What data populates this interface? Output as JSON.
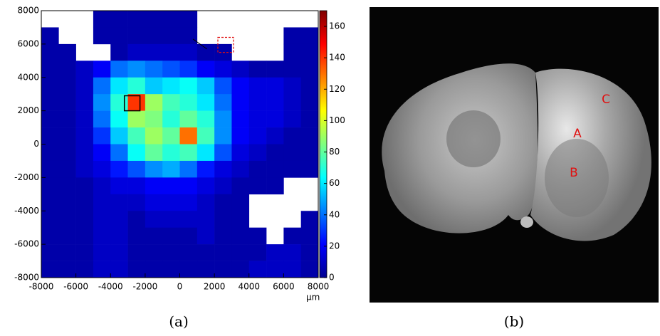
{
  "chart_data": [
    {
      "type": "heatmap",
      "xlabel": "µm",
      "caption": "(a)",
      "xlim": [
        -8000,
        8000
      ],
      "ylim": [
        -8000,
        8000
      ],
      "xticks": [
        -8000,
        -6000,
        -4000,
        -2000,
        0,
        2000,
        4000,
        6000,
        8000
      ],
      "yticks": [
        -8000,
        -6000,
        -4000,
        -2000,
        0,
        2000,
        4000,
        6000,
        8000
      ],
      "clim": [
        0,
        170
      ],
      "cticks": [
        0,
        20,
        40,
        60,
        80,
        100,
        120,
        140,
        160
      ],
      "colormap": [
        "#00008f",
        "#0000ff",
        "#007fff",
        "#00ffff",
        "#7fff7f",
        "#ffff00",
        "#ff7f00",
        "#ff0000",
        "#7f0000"
      ],
      "z": [
        [
          null,
          null,
          null,
          5,
          5,
          5,
          5,
          5,
          5,
          null,
          null,
          null,
          null,
          null,
          null,
          null
        ],
        [
          5,
          null,
          null,
          5,
          5,
          5,
          5,
          5,
          5,
          null,
          null,
          null,
          null,
          null,
          5,
          5
        ],
        [
          5,
          5,
          null,
          null,
          5,
          10,
          10,
          10,
          10,
          5,
          5,
          null,
          null,
          null,
          5,
          5
        ],
        [
          5,
          5,
          10,
          20,
          40,
          45,
          40,
          35,
          30,
          20,
          15,
          10,
          5,
          5,
          5,
          5
        ],
        [
          5,
          5,
          10,
          40,
          60,
          70,
          55,
          60,
          65,
          55,
          35,
          20,
          15,
          15,
          10,
          5
        ],
        [
          5,
          5,
          10,
          45,
          70,
          140,
          90,
          75,
          70,
          60,
          40,
          20,
          15,
          15,
          10,
          5
        ],
        [
          5,
          5,
          10,
          40,
          65,
          90,
          85,
          70,
          80,
          70,
          45,
          20,
          15,
          15,
          10,
          5
        ],
        [
          5,
          5,
          10,
          30,
          55,
          75,
          90,
          80,
          130,
          75,
          45,
          20,
          15,
          10,
          5,
          5
        ],
        [
          5,
          5,
          10,
          20,
          40,
          65,
          80,
          70,
          75,
          60,
          35,
          15,
          10,
          5,
          5,
          5
        ],
        [
          5,
          5,
          10,
          15,
          25,
          35,
          45,
          50,
          40,
          25,
          15,
          10,
          5,
          5,
          5,
          5
        ],
        [
          5,
          5,
          5,
          10,
          15,
          15,
          20,
          20,
          20,
          15,
          10,
          5,
          5,
          5,
          null,
          null
        ],
        [
          5,
          5,
          5,
          10,
          10,
          10,
          15,
          15,
          15,
          10,
          5,
          5,
          null,
          null,
          null,
          null
        ],
        [
          5,
          5,
          5,
          10,
          10,
          5,
          10,
          10,
          10,
          10,
          5,
          5,
          null,
          null,
          null,
          5
        ],
        [
          5,
          5,
          5,
          10,
          10,
          5,
          5,
          5,
          5,
          10,
          5,
          5,
          5,
          null,
          5,
          5
        ],
        [
          5,
          5,
          5,
          10,
          10,
          5,
          5,
          5,
          5,
          5,
          5,
          5,
          5,
          10,
          10,
          5
        ],
        [
          5,
          5,
          5,
          10,
          10,
          5,
          5,
          5,
          5,
          5,
          5,
          5,
          10,
          10,
          10,
          5
        ]
      ]
    },
    {
      "type": "image",
      "caption": "(b)",
      "annotations": [
        "A",
        "B",
        "C"
      ]
    }
  ]
}
